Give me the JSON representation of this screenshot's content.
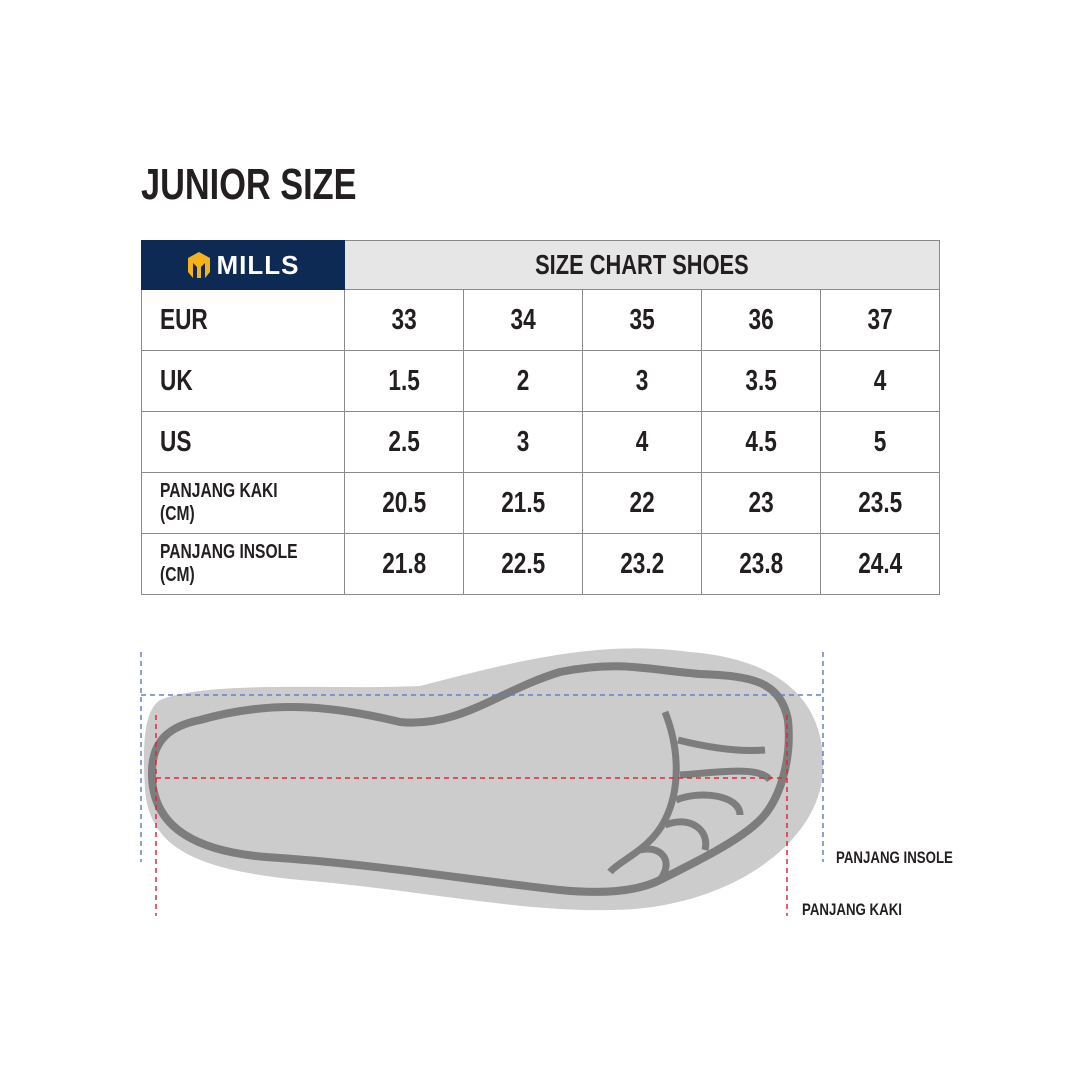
{
  "title": "JUNIOR SIZE",
  "brand": {
    "name": "MILLS",
    "color": "#0d2a55",
    "logo_color": "#f5b21b"
  },
  "table": {
    "header": "SIZE CHART SHOES",
    "rows": [
      {
        "label": "EUR",
        "values": [
          "33",
          "34",
          "35",
          "36",
          "37"
        ]
      },
      {
        "label": "UK",
        "values": [
          "1.5",
          "2",
          "3",
          "3.5",
          "4"
        ]
      },
      {
        "label": "US",
        "values": [
          "2.5",
          "3",
          "4",
          "4.5",
          "5"
        ]
      },
      {
        "label": "PANJANG KAKI (CM)",
        "values": [
          "20.5",
          "21.5",
          "22",
          "23",
          "23.5"
        ]
      },
      {
        "label": "PANJANG INSOLE (CM)",
        "values": [
          "21.8",
          "22.5",
          "23.2",
          "23.8",
          "24.4"
        ]
      }
    ]
  },
  "diagram": {
    "insole_label": "PANJANG INSOLE",
    "foot_label": "PANJANG KAKI",
    "insole_line_color": "#6b7fc4",
    "foot_line_color": "#e0283a"
  }
}
